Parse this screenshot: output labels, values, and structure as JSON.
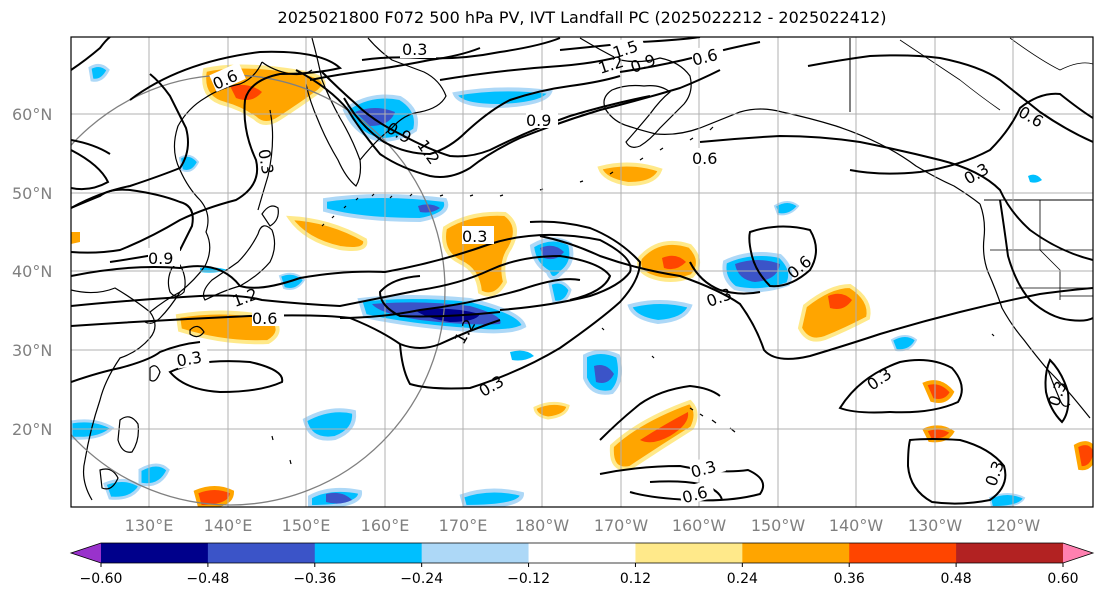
{
  "title": "2025021800 F072 500 hPa PV, IVT Landfall PC (2025022212 - 2025022412)",
  "latitude_labels": [
    "60°N",
    "50°N",
    "40°N",
    "30°N",
    "20°N"
  ],
  "longitude_labels": [
    "130°E",
    "140°E",
    "150°E",
    "160°E",
    "170°E",
    "180°W",
    "170°W",
    "160°W",
    "150°W",
    "140°W",
    "130°W",
    "120°W"
  ],
  "colorbar": {
    "ticks": [
      "−0.60",
      "−0.48",
      "−0.36",
      "−0.24",
      "−0.12",
      "0.12",
      "0.24",
      "0.36",
      "0.48",
      "0.60"
    ],
    "colors": [
      "#9932cc",
      "#00008b",
      "#3b54c8",
      "#00bfff",
      "#add8f7",
      "#ffffff",
      "#ffe98a",
      "#ffa500",
      "#ff4500",
      "#b22222",
      "#ff80b0"
    ]
  },
  "contour_labels": [
    "0.3",
    "1.5",
    "1.2",
    "0.9",
    "0.6",
    "0.6",
    "0.9",
    "0.9",
    "1.2",
    "0.6",
    "0.6",
    "0.3",
    "0.3",
    "0.3",
    "0.9",
    "1.2",
    "0.6",
    "1.2",
    "0.3",
    "0.3",
    "0.6",
    "0.3",
    "0.3",
    "0.3",
    "0.6",
    "0.3",
    "0.3"
  ],
  "colors": {
    "contour": "#000000",
    "coastline": "#000000",
    "grid": "#b0b0b0",
    "axis_label": "#808080"
  }
}
